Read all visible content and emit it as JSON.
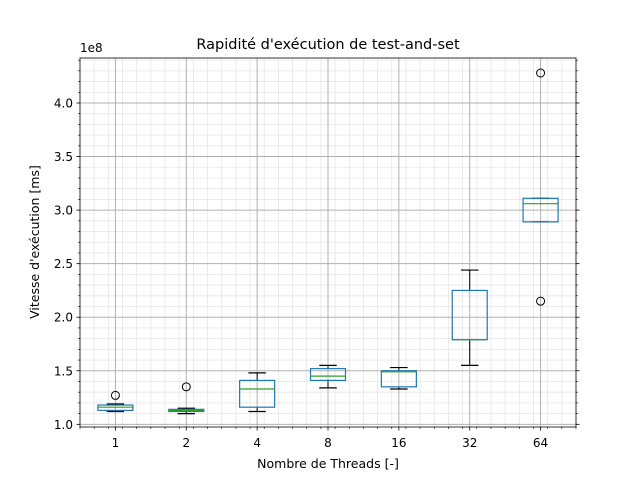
{
  "chart_data": {
    "type": "box",
    "title": "Rapidité d'exécution de test-and-set",
    "xlabel": "Nombre de Threads [-]",
    "ylabel": "Vitesse d'exécution [ms]",
    "y_offset_label": "1e8",
    "y_scale": 100000000,
    "ylim": [
      0.975,
      4.42
    ],
    "yticks": [
      "1.0",
      "1.5",
      "2.0",
      "2.5",
      "3.0",
      "3.5",
      "4.0"
    ],
    "grid": true,
    "categories": [
      "1",
      "2",
      "4",
      "8",
      "16",
      "32",
      "64"
    ],
    "boxes": [
      {
        "category": "1",
        "whisker_low": 1.12,
        "q1": 1.13,
        "median": 1.16,
        "q3": 1.18,
        "whisker_high": 1.19,
        "outliers": [
          1.27
        ]
      },
      {
        "category": "2",
        "whisker_low": 1.1,
        "q1": 1.12,
        "median": 1.13,
        "q3": 1.14,
        "whisker_high": 1.15,
        "outliers": [
          1.35
        ]
      },
      {
        "category": "4",
        "whisker_low": 1.12,
        "q1": 1.16,
        "median": 1.33,
        "q3": 1.41,
        "whisker_high": 1.48,
        "outliers": []
      },
      {
        "category": "8",
        "whisker_low": 1.34,
        "q1": 1.41,
        "median": 1.45,
        "q3": 1.52,
        "whisker_high": 1.55,
        "outliers": []
      },
      {
        "category": "16",
        "whisker_low": 1.33,
        "q1": 1.35,
        "median": 1.49,
        "q3": 1.5,
        "whisker_high": 1.53,
        "outliers": []
      },
      {
        "category": "32",
        "whisker_low": 1.55,
        "q1": 1.79,
        "median": 1.79,
        "q3": 2.25,
        "whisker_high": 2.44,
        "outliers": []
      },
      {
        "category": "64",
        "whisker_low": 2.89,
        "q1": 2.89,
        "median": 3.06,
        "q3": 3.11,
        "whisker_high": 3.11,
        "outliers": [
          4.28,
          2.15
        ]
      }
    ],
    "colors": {
      "box": "#1f77b4",
      "median": "#2ca02c",
      "whisker": "#000000",
      "grid_major": "#b0b0b0",
      "grid_minor": "#e6e6e6"
    }
  }
}
